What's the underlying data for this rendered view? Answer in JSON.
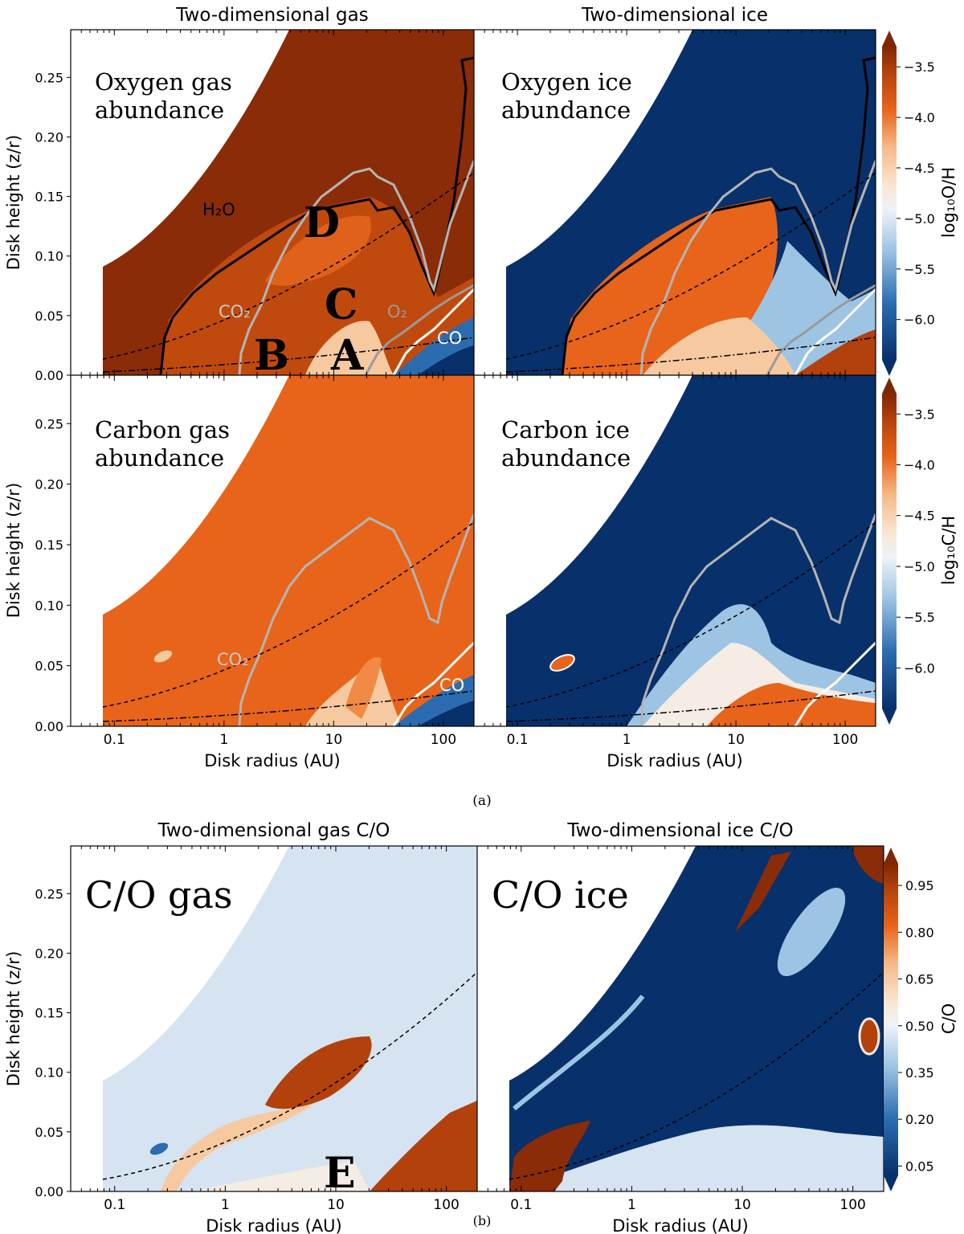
{
  "colors": {
    "dark_blue": "#08306b",
    "mid_blue": "#2b6cb0",
    "light_blue": "#d6e3f0",
    "pale": "#f5ece3",
    "peach": "#f6c9a0",
    "orange": "#e8641a",
    "dark_orange": "#b3410c",
    "brown": "#8a2c08",
    "gray_line": "#b4b4b4",
    "black": "#000000"
  },
  "figure": {
    "part_a_caption": "(a)",
    "part_b_caption": "(b)"
  },
  "chart_data": [
    {
      "type": "heatmap",
      "title": "Two-dimensional gas",
      "panel_label": [
        "Oxygen gas",
        "abundance"
      ],
      "xlabel": "",
      "ylabel": "Disk height (z/r)",
      "xscale": "log",
      "xlim": [
        0.04,
        190
      ],
      "ylim": [
        0,
        0.29
      ],
      "xticks": [],
      "yticks": [
        0.0,
        0.05,
        0.1,
        0.15,
        0.2,
        0.25
      ],
      "ytick_labels": [
        "0.00",
        "0.05",
        "0.10",
        "0.15",
        "0.20",
        "0.25"
      ],
      "background": "brown",
      "contour_labels": [
        "H₂O",
        "CO₂",
        "O₂",
        "CO"
      ],
      "region_labels": [
        "A",
        "B",
        "C",
        "D"
      ]
    },
    {
      "type": "heatmap",
      "title": "Two-dimensional ice",
      "panel_label": [
        "Oxygen ice",
        "abundance"
      ],
      "xscale": "log",
      "xlim": [
        0.04,
        190
      ],
      "ylim": [
        0,
        0.29
      ],
      "background": "dark_blue",
      "colorbar": {
        "label": "log₁₀O/H",
        "ticks": [
          -3.5,
          -4.0,
          -4.5,
          -5.0,
          -5.5,
          -6.0
        ],
        "tick_labels": [
          "−3.5",
          "−4.0",
          "−4.5",
          "−5.0",
          "−5.5",
          "−6.0"
        ],
        "range": [
          -6.4,
          -3.3
        ]
      }
    },
    {
      "type": "heatmap",
      "title": "",
      "panel_label": [
        "Carbon gas",
        "abundance"
      ],
      "xlabel": "Disk radius (AU)",
      "ylabel": "Disk height (z/r)",
      "xscale": "log",
      "xlim": [
        0.04,
        190
      ],
      "ylim": [
        0,
        0.29
      ],
      "xticks": [
        0.1,
        1,
        10,
        100
      ],
      "xtick_labels": [
        "0.1",
        "1",
        "10",
        "100"
      ],
      "yticks": [
        0.0,
        0.05,
        0.1,
        0.15,
        0.2,
        0.25
      ],
      "ytick_labels": [
        "0.00",
        "0.05",
        "0.10",
        "0.15",
        "0.20",
        "0.25"
      ],
      "background": "orange",
      "contour_labels": [
        "CO₂",
        "CO"
      ]
    },
    {
      "type": "heatmap",
      "title": "",
      "panel_label": [
        "Carbon ice",
        "abundance"
      ],
      "xlabel": "Disk radius (AU)",
      "xscale": "log",
      "xlim": [
        0.04,
        190
      ],
      "ylim": [
        0,
        0.29
      ],
      "xticks": [
        0.1,
        1,
        10,
        100
      ],
      "xtick_labels": [
        "0.1",
        "1",
        "10",
        "100"
      ],
      "background": "dark_blue",
      "colorbar": {
        "label": "log₁₀C/H",
        "ticks": [
          -3.5,
          -4.0,
          -4.5,
          -5.0,
          -5.5,
          -6.0
        ],
        "tick_labels": [
          "−3.5",
          "−4.0",
          "−4.5",
          "−5.0",
          "−5.5",
          "−6.0"
        ],
        "range": [
          -6.4,
          -3.3
        ]
      }
    },
    {
      "type": "heatmap",
      "title": "Two-dimensional gas C/O",
      "panel_label": [
        "C/O gas"
      ],
      "xlabel": "Disk radius (AU)",
      "ylabel": "Disk height (z/r)",
      "xscale": "log",
      "xlim": [
        0.04,
        190
      ],
      "ylim": [
        0,
        0.29
      ],
      "xticks": [
        0.1,
        1,
        10,
        100
      ],
      "xtick_labels": [
        "0.1",
        "1",
        "10",
        "100"
      ],
      "yticks": [
        0.0,
        0.05,
        0.1,
        0.15,
        0.2,
        0.25
      ],
      "ytick_labels": [
        "0.00",
        "0.05",
        "0.10",
        "0.15",
        "0.20",
        "0.25"
      ],
      "background": "light_blue",
      "region_labels": [
        "E"
      ]
    },
    {
      "type": "heatmap",
      "title": "Two-dimensional ice C/O",
      "panel_label": [
        "C/O ice"
      ],
      "xlabel": "Disk radius (AU)",
      "xscale": "log",
      "xlim": [
        0.04,
        190
      ],
      "ylim": [
        0,
        0.29
      ],
      "xticks": [
        0.1,
        1,
        10,
        100
      ],
      "xtick_labels": [
        "0.1",
        "1",
        "10",
        "100"
      ],
      "background": "dark_blue",
      "colorbar": {
        "label": "C/O",
        "ticks": [
          0.95,
          0.8,
          0.65,
          0.5,
          0.35,
          0.2,
          0.05
        ],
        "tick_labels": [
          "0.95",
          "0.80",
          "0.65",
          "0.50",
          "0.35",
          "0.20",
          "0.05"
        ],
        "range": [
          0.02,
          1.02
        ]
      }
    }
  ]
}
